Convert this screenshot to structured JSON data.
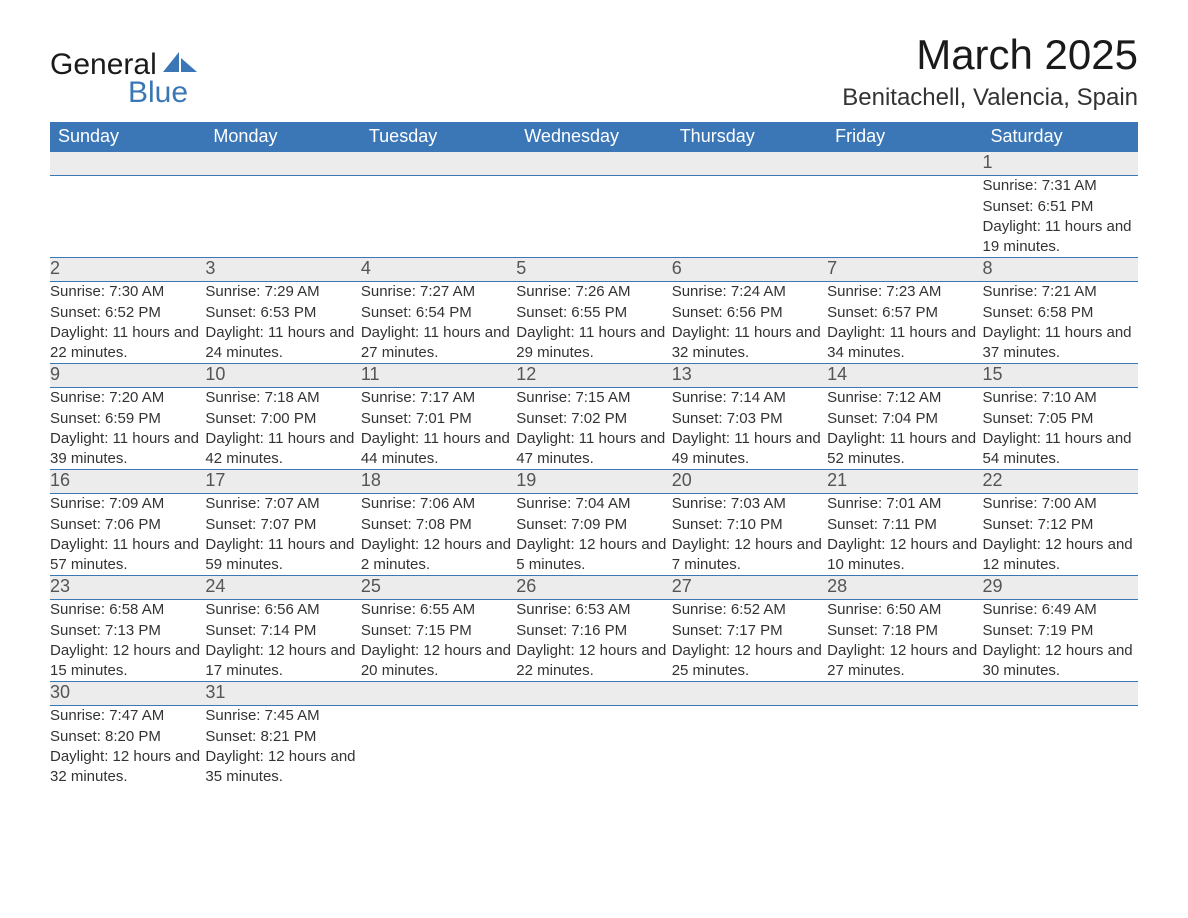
{
  "brand": {
    "name": "General",
    "sub": "Blue",
    "accent_color": "#3b77b7"
  },
  "title": "March 2025",
  "location": "Benitachell, Valencia, Spain",
  "colors": {
    "header_bg": "#3b77b7",
    "header_text": "#ffffff",
    "daynum_bg": "#ececec",
    "text": "#333333",
    "rule": "#3b77b7"
  },
  "weekdays": [
    "Sunday",
    "Monday",
    "Tuesday",
    "Wednesday",
    "Thursday",
    "Friday",
    "Saturday"
  ],
  "weeks": [
    [
      null,
      null,
      null,
      null,
      null,
      null,
      {
        "n": "1",
        "sr": "Sunrise: 7:31 AM",
        "ss": "Sunset: 6:51 PM",
        "dl": "Daylight: 11 hours and 19 minutes."
      }
    ],
    [
      {
        "n": "2",
        "sr": "Sunrise: 7:30 AM",
        "ss": "Sunset: 6:52 PM",
        "dl": "Daylight: 11 hours and 22 minutes."
      },
      {
        "n": "3",
        "sr": "Sunrise: 7:29 AM",
        "ss": "Sunset: 6:53 PM",
        "dl": "Daylight: 11 hours and 24 minutes."
      },
      {
        "n": "4",
        "sr": "Sunrise: 7:27 AM",
        "ss": "Sunset: 6:54 PM",
        "dl": "Daylight: 11 hours and 27 minutes."
      },
      {
        "n": "5",
        "sr": "Sunrise: 7:26 AM",
        "ss": "Sunset: 6:55 PM",
        "dl": "Daylight: 11 hours and 29 minutes."
      },
      {
        "n": "6",
        "sr": "Sunrise: 7:24 AM",
        "ss": "Sunset: 6:56 PM",
        "dl": "Daylight: 11 hours and 32 minutes."
      },
      {
        "n": "7",
        "sr": "Sunrise: 7:23 AM",
        "ss": "Sunset: 6:57 PM",
        "dl": "Daylight: 11 hours and 34 minutes."
      },
      {
        "n": "8",
        "sr": "Sunrise: 7:21 AM",
        "ss": "Sunset: 6:58 PM",
        "dl": "Daylight: 11 hours and 37 minutes."
      }
    ],
    [
      {
        "n": "9",
        "sr": "Sunrise: 7:20 AM",
        "ss": "Sunset: 6:59 PM",
        "dl": "Daylight: 11 hours and 39 minutes."
      },
      {
        "n": "10",
        "sr": "Sunrise: 7:18 AM",
        "ss": "Sunset: 7:00 PM",
        "dl": "Daylight: 11 hours and 42 minutes."
      },
      {
        "n": "11",
        "sr": "Sunrise: 7:17 AM",
        "ss": "Sunset: 7:01 PM",
        "dl": "Daylight: 11 hours and 44 minutes."
      },
      {
        "n": "12",
        "sr": "Sunrise: 7:15 AM",
        "ss": "Sunset: 7:02 PM",
        "dl": "Daylight: 11 hours and 47 minutes."
      },
      {
        "n": "13",
        "sr": "Sunrise: 7:14 AM",
        "ss": "Sunset: 7:03 PM",
        "dl": "Daylight: 11 hours and 49 minutes."
      },
      {
        "n": "14",
        "sr": "Sunrise: 7:12 AM",
        "ss": "Sunset: 7:04 PM",
        "dl": "Daylight: 11 hours and 52 minutes."
      },
      {
        "n": "15",
        "sr": "Sunrise: 7:10 AM",
        "ss": "Sunset: 7:05 PM",
        "dl": "Daylight: 11 hours and 54 minutes."
      }
    ],
    [
      {
        "n": "16",
        "sr": "Sunrise: 7:09 AM",
        "ss": "Sunset: 7:06 PM",
        "dl": "Daylight: 11 hours and 57 minutes."
      },
      {
        "n": "17",
        "sr": "Sunrise: 7:07 AM",
        "ss": "Sunset: 7:07 PM",
        "dl": "Daylight: 11 hours and 59 minutes."
      },
      {
        "n": "18",
        "sr": "Sunrise: 7:06 AM",
        "ss": "Sunset: 7:08 PM",
        "dl": "Daylight: 12 hours and 2 minutes."
      },
      {
        "n": "19",
        "sr": "Sunrise: 7:04 AM",
        "ss": "Sunset: 7:09 PM",
        "dl": "Daylight: 12 hours and 5 minutes."
      },
      {
        "n": "20",
        "sr": "Sunrise: 7:03 AM",
        "ss": "Sunset: 7:10 PM",
        "dl": "Daylight: 12 hours and 7 minutes."
      },
      {
        "n": "21",
        "sr": "Sunrise: 7:01 AM",
        "ss": "Sunset: 7:11 PM",
        "dl": "Daylight: 12 hours and 10 minutes."
      },
      {
        "n": "22",
        "sr": "Sunrise: 7:00 AM",
        "ss": "Sunset: 7:12 PM",
        "dl": "Daylight: 12 hours and 12 minutes."
      }
    ],
    [
      {
        "n": "23",
        "sr": "Sunrise: 6:58 AM",
        "ss": "Sunset: 7:13 PM",
        "dl": "Daylight: 12 hours and 15 minutes."
      },
      {
        "n": "24",
        "sr": "Sunrise: 6:56 AM",
        "ss": "Sunset: 7:14 PM",
        "dl": "Daylight: 12 hours and 17 minutes."
      },
      {
        "n": "25",
        "sr": "Sunrise: 6:55 AM",
        "ss": "Sunset: 7:15 PM",
        "dl": "Daylight: 12 hours and 20 minutes."
      },
      {
        "n": "26",
        "sr": "Sunrise: 6:53 AM",
        "ss": "Sunset: 7:16 PM",
        "dl": "Daylight: 12 hours and 22 minutes."
      },
      {
        "n": "27",
        "sr": "Sunrise: 6:52 AM",
        "ss": "Sunset: 7:17 PM",
        "dl": "Daylight: 12 hours and 25 minutes."
      },
      {
        "n": "28",
        "sr": "Sunrise: 6:50 AM",
        "ss": "Sunset: 7:18 PM",
        "dl": "Daylight: 12 hours and 27 minutes."
      },
      {
        "n": "29",
        "sr": "Sunrise: 6:49 AM",
        "ss": "Sunset: 7:19 PM",
        "dl": "Daylight: 12 hours and 30 minutes."
      }
    ],
    [
      {
        "n": "30",
        "sr": "Sunrise: 7:47 AM",
        "ss": "Sunset: 8:20 PM",
        "dl": "Daylight: 12 hours and 32 minutes."
      },
      {
        "n": "31",
        "sr": "Sunrise: 7:45 AM",
        "ss": "Sunset: 8:21 PM",
        "dl": "Daylight: 12 hours and 35 minutes."
      },
      null,
      null,
      null,
      null,
      null
    ]
  ]
}
